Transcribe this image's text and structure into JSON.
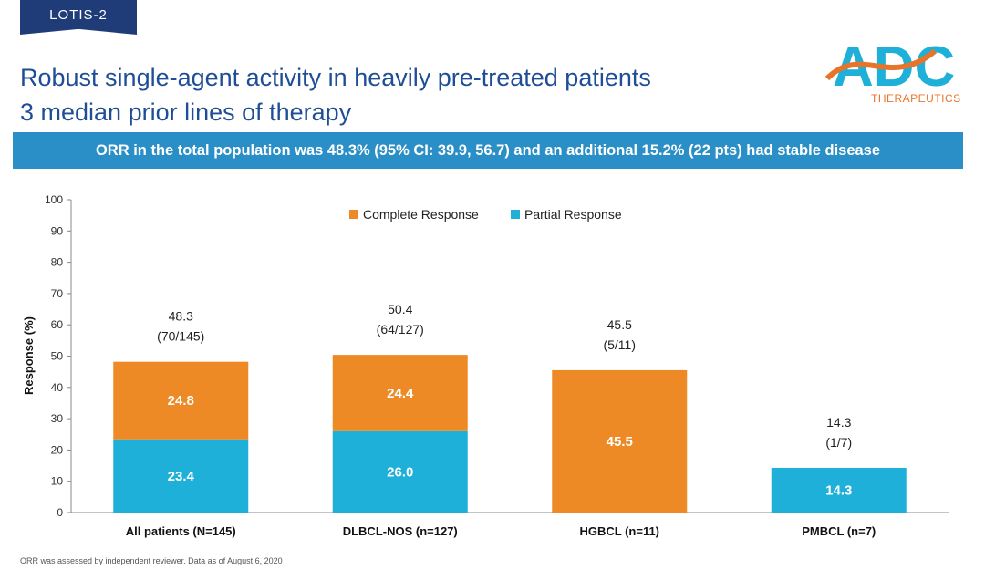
{
  "header": {
    "tag": "LOTIS-2",
    "title_line1": "Robust single-agent activity in heavily pre-treated patients",
    "title_line2": "3 median prior lines of therapy",
    "banner": "ORR in the total population was 48.3% (95% CI: 39.9, 56.7) and an additional 15.2% (22 pts) had stable disease",
    "logo_text": "ADC",
    "logo_subtext": "THERAPEUTICS"
  },
  "footnote": "ORR was assessed by independent reviewer. Data as of August 6, 2020",
  "colors": {
    "header_blue": "#1f4e96",
    "banner_blue": "#2a8fc6",
    "complete": "#ee8a26",
    "partial": "#1eb0d8"
  },
  "chart_data": {
    "type": "bar",
    "stacked": true,
    "categories": [
      "All patients (N=145)",
      "DLBCL-NOS (n=127)",
      "HGBCL (n=11)",
      "PMBCL (n=7)"
    ],
    "series": [
      {
        "name": "Partial Response",
        "color": "#1eb0d8",
        "values": [
          23.4,
          26.0,
          null,
          14.3
        ],
        "labels": [
          "23.4",
          "26.0",
          "",
          "14.3"
        ]
      },
      {
        "name": "Complete Response",
        "color": "#ee8a26",
        "values": [
          24.8,
          24.4,
          45.5,
          null
        ],
        "labels": [
          "24.8",
          "24.4",
          "45.5",
          ""
        ]
      }
    ],
    "totals": [
      48.3,
      50.4,
      45.5,
      14.3
    ],
    "total_labels": [
      "48.3",
      "50.4",
      "45.5",
      "14.3"
    ],
    "count_labels": [
      "(70/145)",
      "(64/127)",
      "(5/11)",
      "(1/7)"
    ],
    "legend": [
      "Complete Response",
      "Partial Response"
    ],
    "legend_position": "top-center",
    "ylabel": "Response (%)",
    "xlabel": "",
    "ylim": [
      0,
      100
    ],
    "yticks": [
      0,
      10,
      20,
      30,
      40,
      50,
      60,
      70,
      80,
      90,
      100
    ],
    "grid": false
  }
}
